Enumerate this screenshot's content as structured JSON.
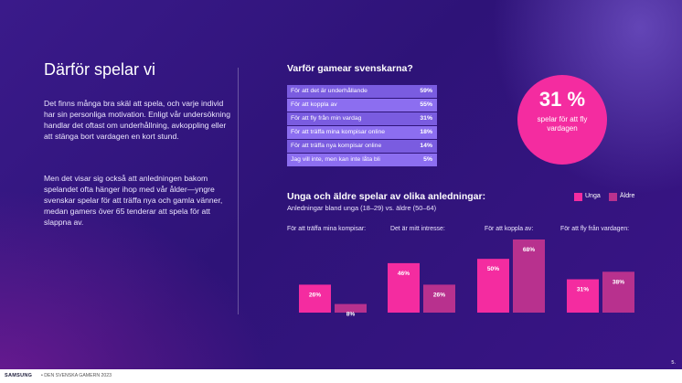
{
  "left": {
    "title": "Därför spelar vi",
    "paragraph1": "Det finns många bra skäl att spela, och varje individ har sin personliga motivation. Enligt vår undersökning handlar det oftast om underhållning, avkoppling eller att stänga bort vardagen en kort stund.",
    "paragraph2": "Men det visar sig också att anledningen bakom spelandet ofta hänger ihop med vår ålder—yngre svenskar spelar för att träffa nya och gamla vänner, medan gamers över 65 tenderar att spela för att slappna av."
  },
  "highlight": {
    "value": "31 %",
    "text": "spelar för att fly vardagen"
  },
  "colors": {
    "young": "#f42ca0",
    "old": "#b8318e",
    "table_row": "#7a5ce0",
    "table_row_alt": "#8c6ef0",
    "circle": "#f42ca0"
  },
  "footer": {
    "brand": "SAMSUNG",
    "subtitle": "• DEN SVENSKA GAMERN 2023",
    "page": "5."
  },
  "chart_data": [
    {
      "type": "table",
      "title": "Varför gamear svenskarna?",
      "rows": [
        {
          "label": "För att det är underhållande",
          "value": "59%"
        },
        {
          "label": "För att koppla av",
          "value": "55%"
        },
        {
          "label": "För att fly från min vardag",
          "value": "31%"
        },
        {
          "label": "För att träffa mina kompisar online",
          "value": "18%"
        },
        {
          "label": "För att träffa nya kompisar online",
          "value": "14%"
        },
        {
          "label": "Jag vill inte, men kan inte låta bli",
          "value": "5%"
        }
      ]
    },
    {
      "type": "bar",
      "title": "Unga och äldre spelar av olika anledningar:",
      "subtitle": "Anledningar bland unga (18–29) vs. äldre (50–64)",
      "categories": [
        "För att träffa mina kompisar:",
        "Det är mitt intresse:",
        "För att koppla av:",
        "För att fly från vardagen:"
      ],
      "series": [
        {
          "name": "Unga",
          "values": [
            26,
            46,
            50,
            31
          ],
          "labels": [
            "26%",
            "46%",
            "50%",
            "31%"
          ]
        },
        {
          "name": "Äldre",
          "values": [
            8,
            26,
            68,
            38
          ],
          "labels": [
            "8%",
            "26%",
            "68%",
            "38%"
          ]
        }
      ],
      "ylim": [
        0,
        68
      ],
      "legend": "top-right"
    }
  ]
}
